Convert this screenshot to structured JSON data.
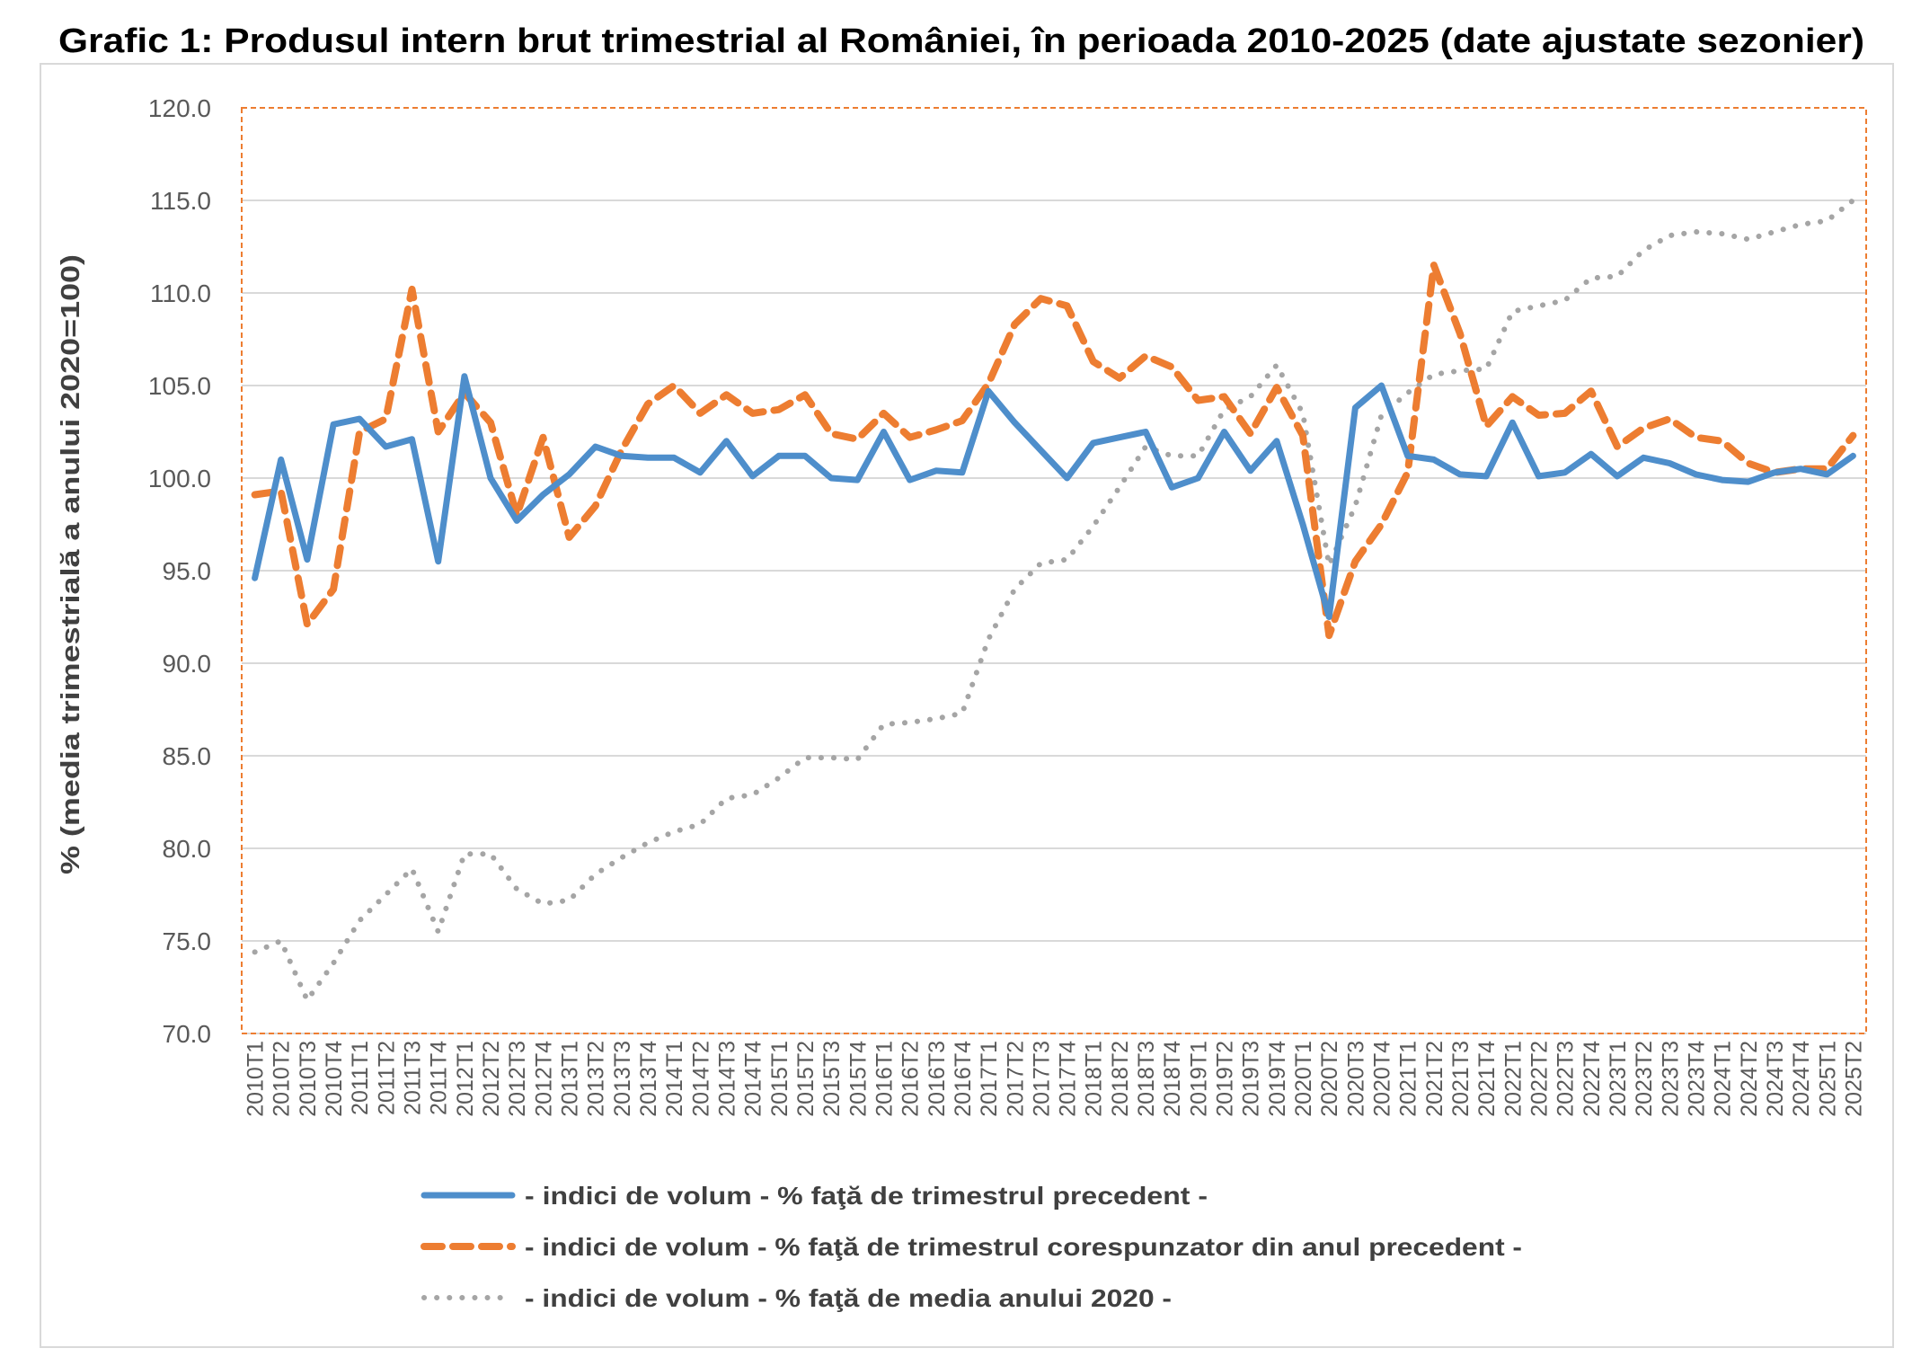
{
  "chart_data": {
    "type": "line",
    "title": "Grafic 1: Produsul intern brut trimestrial al României, în perioada 2010-2025 (date ajustate sezonier)",
    "xlabel": "",
    "ylabel": "% (media trimestrială a anului 2020=100)",
    "ylim": [
      70,
      120
    ],
    "yticks": [
      "70.0",
      "75.0",
      "80.0",
      "85.0",
      "90.0",
      "95.0",
      "100.0",
      "105.0",
      "110.0",
      "115.0",
      "120.0"
    ],
    "grid": true,
    "legend_position": "bottom",
    "categories": [
      "2010T1",
      "2010T2",
      "2010T3",
      "2010T4",
      "2011T1",
      "2011T2",
      "2011T3",
      "2011T4",
      "2012T1",
      "2012T2",
      "2012T3",
      "2012T4",
      "2013T1",
      "2013T2",
      "2013T3",
      "2013T4",
      "2014T1",
      "2014T2",
      "2014T3",
      "2014T4",
      "2015T1",
      "2015T2",
      "2015T3",
      "2015T4",
      "2016T1",
      "2016T2",
      "2016T3",
      "2016T4",
      "2017T1",
      "2017T2",
      "2017T3",
      "2017T4",
      "2018T1",
      "2018T2",
      "2018T3",
      "2018T4",
      "2019T1",
      "2019T2",
      "2019T3",
      "2019T4",
      "2020T1",
      "2020T2",
      "2020T3",
      "2020T4",
      "2021T1",
      "2021T2",
      "2021T3",
      "2021T4",
      "2022T1",
      "2022T2",
      "2022T3",
      "2022T4",
      "2023T1",
      "2023T2",
      "2023T3",
      "2023T4",
      "2024T1",
      "2024T2",
      "2024T3",
      "2024T4",
      "2025T1",
      "2025T2"
    ],
    "series": [
      {
        "name": "- indici de volum - % faţă de trimestrul precedent -",
        "color": "#4E8ECB",
        "style": "solid",
        "values": [
          94.6,
          101.0,
          95.6,
          102.9,
          103.2,
          101.7,
          102.1,
          95.5,
          105.5,
          100.0,
          97.7,
          99.1,
          100.2,
          101.7,
          101.2,
          101.1,
          101.1,
          100.3,
          102.0,
          100.1,
          101.2,
          101.2,
          100.0,
          99.9,
          102.5,
          99.9,
          100.4,
          100.3,
          104.7,
          103.0,
          101.5,
          100.0,
          101.9,
          102.2,
          102.5,
          99.5,
          100.0,
          102.5,
          100.4,
          102.0,
          97.5,
          92.5,
          103.8,
          105.0,
          101.2,
          101.0,
          100.2,
          100.1,
          103.0,
          100.1,
          100.3,
          101.3,
          100.1,
          101.1,
          100.8,
          100.2,
          99.9,
          99.8,
          100.3,
          100.5,
          100.2,
          101.2
        ]
      },
      {
        "name": "- indici de volum - % faţă de trimestrul corespunzator din anul precedent -",
        "color": "#ED7D31",
        "style": "dashed",
        "values": [
          99.1,
          99.3,
          92.1,
          94.0,
          102.5,
          103.2,
          110.2,
          102.5,
          104.6,
          103.0,
          98.0,
          102.2,
          96.8,
          98.5,
          101.5,
          104.0,
          105.0,
          103.5,
          104.5,
          103.5,
          103.7,
          104.5,
          102.4,
          102.1,
          103.5,
          102.2,
          102.6,
          103.1,
          105.1,
          108.3,
          109.7,
          109.3,
          106.3,
          105.4,
          106.6,
          106.0,
          104.2,
          104.4,
          102.4,
          104.9,
          102.3,
          91.5,
          95.5,
          97.5,
          100.3,
          111.5,
          107.8,
          102.8,
          104.4,
          103.4,
          103.5,
          104.7,
          101.7,
          102.7,
          103.2,
          102.2,
          102.0,
          100.8,
          100.3,
          100.5,
          100.5,
          102.3
        ]
      },
      {
        "name": "- indici de volum - % faţă de media anului 2020 -",
        "color": "#A5A5A5",
        "style": "dotted",
        "values": [
          74.4,
          75.0,
          71.8,
          73.8,
          76.1,
          77.5,
          78.9,
          75.5,
          79.7,
          79.7,
          77.8,
          77.0,
          77.2,
          78.6,
          79.5,
          80.3,
          80.9,
          81.3,
          82.7,
          82.9,
          83.8,
          84.9,
          84.9,
          84.8,
          86.7,
          86.8,
          87.0,
          87.3,
          91.3,
          94.0,
          95.4,
          95.6,
          97.4,
          99.5,
          101.7,
          101.2,
          101.2,
          103.7,
          104.4,
          106.1,
          103.5,
          95.3,
          98.5,
          103.4,
          104.6,
          105.6,
          105.8,
          105.9,
          109.0,
          109.3,
          109.6,
          110.8,
          110.9,
          112.3,
          113.1,
          113.3,
          113.2,
          112.9,
          113.3,
          113.7,
          113.9,
          115.0
        ]
      }
    ]
  }
}
